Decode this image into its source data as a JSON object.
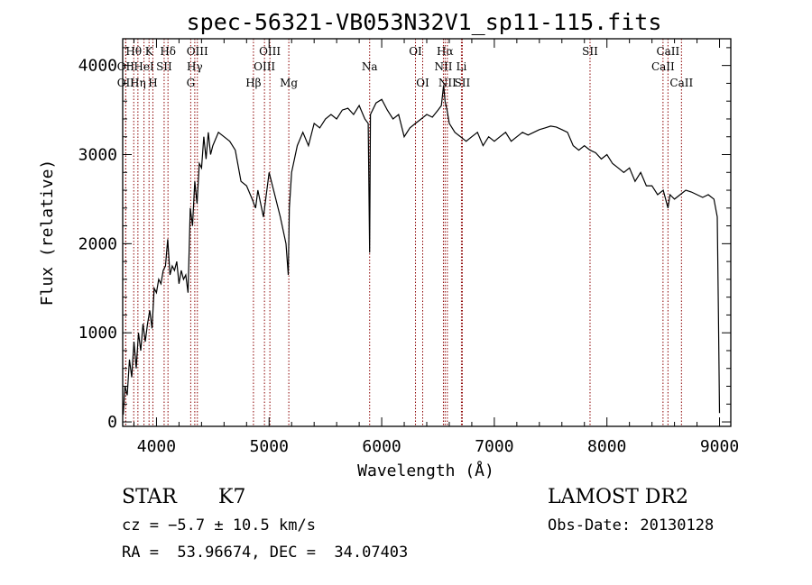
{
  "chart_data": {
    "type": "line",
    "title": "spec-56321-VB053N32V1_sp11-115.fits",
    "xlabel": "Wavelength (Å)",
    "ylabel": "Flux (relative)",
    "xlim": [
      3700,
      9100
    ],
    "ylim": [
      -50,
      4300
    ],
    "xticks": [
      4000,
      5000,
      6000,
      7000,
      8000,
      9000
    ],
    "xticklabels": [
      "4000",
      "5000",
      "6000",
      "7000",
      "8000",
      "9000"
    ],
    "yticks": [
      0,
      1000,
      2000,
      3000,
      4000
    ],
    "yticklabels": [
      "0",
      "1000",
      "2000",
      "3000",
      "4000"
    ],
    "grid": false,
    "line_color": "#000000",
    "marker_color": "#8b0000",
    "series": [
      {
        "x": [
          3705,
          3720,
          3740,
          3760,
          3780,
          3800,
          3820,
          3840,
          3860,
          3880,
          3900,
          3920,
          3940,
          3960,
          3980,
          4000,
          4020,
          4040,
          4060,
          4080,
          4100,
          4120,
          4140,
          4160,
          4180,
          4200,
          4220,
          4240,
          4260,
          4280,
          4300,
          4320,
          4340,
          4360,
          4380,
          4400,
          4420,
          4440,
          4460,
          4480,
          4500,
          4550,
          4600,
          4650,
          4700,
          4750,
          4800,
          4850,
          4880,
          4900,
          4950,
          5000,
          5050,
          5100,
          5150,
          5170,
          5180,
          5200,
          5250,
          5300,
          5350,
          5400,
          5450,
          5500,
          5550,
          5600,
          5650,
          5700,
          5750,
          5800,
          5850,
          5880,
          5893,
          5900,
          5950,
          6000,
          6050,
          6100,
          6150,
          6200,
          6250,
          6300,
          6350,
          6400,
          6450,
          6500,
          6530,
          6550,
          6563,
          6580,
          6600,
          6650,
          6700,
          6750,
          6800,
          6850,
          6900,
          6950,
          7000,
          7050,
          7100,
          7150,
          7200,
          7250,
          7300,
          7350,
          7400,
          7450,
          7500,
          7550,
          7600,
          7650,
          7700,
          7750,
          7800,
          7850,
          7900,
          7950,
          8000,
          8050,
          8100,
          8150,
          8200,
          8250,
          8300,
          8350,
          8400,
          8450,
          8500,
          8542,
          8560,
          8600,
          8650,
          8700,
          8750,
          8800,
          8850,
          8900,
          8950,
          8980,
          8990,
          9000
        ],
        "y": [
          80,
          400,
          300,
          700,
          500,
          900,
          600,
          1000,
          800,
          1100,
          900,
          1100,
          1250,
          1050,
          1500,
          1450,
          1600,
          1550,
          1700,
          1750,
          2050,
          1650,
          1750,
          1700,
          1800,
          1550,
          1700,
          1600,
          1650,
          1450,
          2400,
          2200,
          2700,
          2450,
          2900,
          2850,
          3200,
          2950,
          3250,
          3000,
          3100,
          3250,
          3200,
          3150,
          3050,
          2700,
          2650,
          2500,
          2400,
          2600,
          2300,
          2800,
          2550,
          2300,
          2000,
          1650,
          2400,
          2800,
          3100,
          3250,
          3100,
          3350,
          3300,
          3400,
          3450,
          3400,
          3500,
          3520,
          3450,
          3550,
          3400,
          3350,
          1900,
          3450,
          3580,
          3620,
          3500,
          3400,
          3450,
          3200,
          3300,
          3350,
          3400,
          3450,
          3420,
          3500,
          3550,
          3780,
          3600,
          3500,
          3350,
          3250,
          3200,
          3150,
          3200,
          3250,
          3100,
          3200,
          3150,
          3200,
          3250,
          3150,
          3200,
          3250,
          3220,
          3250,
          3280,
          3300,
          3320,
          3310,
          3280,
          3250,
          3100,
          3050,
          3100,
          3050,
          3020,
          2950,
          3000,
          2900,
          2850,
          2800,
          2850,
          2700,
          2800,
          2650,
          2650,
          2550,
          2600,
          2400,
          2550,
          2500,
          2550,
          2600,
          2580,
          2550,
          2520,
          2550,
          2500,
          2300,
          1200,
          100
        ]
      }
    ],
    "line_markers": [
      {
        "label": "Hθ",
        "x": 3798,
        "row": 0
      },
      {
        "label": "OII",
        "x": 3727,
        "row": 1
      },
      {
        "label": "OII",
        "x": 3727,
        "row": 2
      },
      {
        "label": "K",
        "x": 3934,
        "row": 0
      },
      {
        "label": "HeI",
        "x": 3889,
        "row": 1
      },
      {
        "label": "Hη",
        "x": 3835,
        "row": 2
      },
      {
        "label": "Hδ",
        "x": 4102,
        "row": 0
      },
      {
        "label": "SII",
        "x": 4068,
        "row": 1
      },
      {
        "label": "H",
        "x": 3968,
        "row": 2
      },
      {
        "label": "OIII",
        "x": 4363,
        "row": 0
      },
      {
        "label": "Hγ",
        "x": 4340,
        "row": 1
      },
      {
        "label": "G",
        "x": 4304,
        "row": 2
      },
      {
        "label": "OIII",
        "x": 5007,
        "row": 0
      },
      {
        "label": "OIII",
        "x": 4959,
        "row": 1
      },
      {
        "label": "Hβ",
        "x": 4861,
        "row": 2
      },
      {
        "label": "Mg",
        "x": 5175,
        "row": 2
      },
      {
        "label": "Na",
        "x": 5893,
        "row": 1
      },
      {
        "label": "OI",
        "x": 6300,
        "row": 0
      },
      {
        "label": "OI",
        "x": 6364,
        "row": 2
      },
      {
        "label": "Hα",
        "x": 6563,
        "row": 0
      },
      {
        "label": "NII",
        "x": 6548,
        "row": 1
      },
      {
        "label": "NII",
        "x": 6583,
        "row": 2
      },
      {
        "label": "Li",
        "x": 6708,
        "row": 1
      },
      {
        "label": "SII",
        "x": 6716,
        "row": 2
      },
      {
        "label": "SII",
        "x": 7850,
        "row": 0
      },
      {
        "label": "CaII",
        "x": 8542,
        "row": 0
      },
      {
        "label": "CaII",
        "x": 8498,
        "row": 1
      },
      {
        "label": "CaII",
        "x": 8662,
        "row": 2
      }
    ]
  },
  "info": {
    "object_class": "STAR",
    "subclass": "K7",
    "survey": "LAMOST DR2",
    "redshift": "cz = −5.7 ± 10.5 km/s",
    "obs_date": "Obs-Date: 20130128",
    "coords": "RA =  53.96674, DEC =  34.07403"
  }
}
